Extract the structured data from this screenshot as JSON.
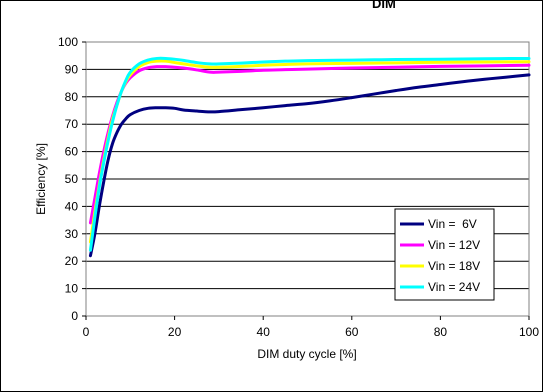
{
  "chart_data": {
    "type": "line",
    "title_fragment": "DIM",
    "xlabel": "DIM duty cycle [%]",
    "ylabel": "Efficiency [%]",
    "xlim": [
      0,
      100
    ],
    "ylim": [
      0,
      100
    ],
    "x_ticks": [
      0,
      20,
      40,
      60,
      80,
      100
    ],
    "y_ticks": [
      0,
      10,
      20,
      30,
      40,
      50,
      60,
      70,
      80,
      90,
      100
    ],
    "grid": "horizontal",
    "legend_position": "right",
    "series": [
      {
        "name": "Vin =  6V",
        "color": "#000080",
        "points": [
          [
            1,
            22
          ],
          [
            2,
            30
          ],
          [
            3,
            40
          ],
          [
            4,
            49
          ],
          [
            5,
            57
          ],
          [
            6,
            63
          ],
          [
            7,
            67
          ],
          [
            8,
            70
          ],
          [
            9,
            72
          ],
          [
            10,
            73.5
          ],
          [
            12,
            75
          ],
          [
            14,
            75.8
          ],
          [
            16,
            76
          ],
          [
            18,
            76
          ],
          [
            20,
            75.8
          ],
          [
            22,
            75.2
          ],
          [
            25,
            74.8
          ],
          [
            28,
            74.5
          ],
          [
            30,
            74.6
          ],
          [
            35,
            75.3
          ],
          [
            40,
            76
          ],
          [
            45,
            76.8
          ],
          [
            50,
            77.5
          ],
          [
            55,
            78.5
          ],
          [
            60,
            79.7
          ],
          [
            65,
            81
          ],
          [
            70,
            82.3
          ],
          [
            75,
            83.5
          ],
          [
            80,
            84.5
          ],
          [
            85,
            85.5
          ],
          [
            90,
            86.4
          ],
          [
            95,
            87.2
          ],
          [
            100,
            88
          ]
        ]
      },
      {
        "name": "Vin = 12V",
        "color": "#FF00FF",
        "points": [
          [
            1,
            34
          ],
          [
            2,
            43
          ],
          [
            3,
            52
          ],
          [
            4,
            60
          ],
          [
            5,
            67
          ],
          [
            6,
            73
          ],
          [
            7,
            78
          ],
          [
            8,
            82
          ],
          [
            9,
            85
          ],
          [
            10,
            87
          ],
          [
            12,
            89.5
          ],
          [
            14,
            90.6
          ],
          [
            16,
            91
          ],
          [
            18,
            91
          ],
          [
            20,
            90.8
          ],
          [
            22,
            90.5
          ],
          [
            25,
            89.8
          ],
          [
            28,
            89
          ],
          [
            30,
            89
          ],
          [
            35,
            89.3
          ],
          [
            40,
            89.7
          ],
          [
            45,
            89.9
          ],
          [
            50,
            90.1
          ],
          [
            60,
            90.5
          ],
          [
            70,
            90.8
          ],
          [
            80,
            91.1
          ],
          [
            90,
            91.3
          ],
          [
            100,
            91.5
          ]
        ]
      },
      {
        "name": "Vin = 18V",
        "color": "#FFFF00",
        "points": [
          [
            1,
            27
          ],
          [
            2,
            38
          ],
          [
            3,
            48
          ],
          [
            4,
            57
          ],
          [
            5,
            65
          ],
          [
            6,
            72
          ],
          [
            7,
            77
          ],
          [
            8,
            82
          ],
          [
            9,
            85.5
          ],
          [
            10,
            88
          ],
          [
            12,
            91
          ],
          [
            14,
            92.5
          ],
          [
            16,
            93
          ],
          [
            18,
            93
          ],
          [
            20,
            92.5
          ],
          [
            22,
            92
          ],
          [
            25,
            91.3
          ],
          [
            28,
            90.8
          ],
          [
            30,
            90.8
          ],
          [
            35,
            91.1
          ],
          [
            40,
            91.5
          ],
          [
            45,
            91.8
          ],
          [
            50,
            92
          ],
          [
            60,
            92.2
          ],
          [
            70,
            92.4
          ],
          [
            80,
            92.6
          ],
          [
            90,
            92.7
          ],
          [
            100,
            92.8
          ]
        ]
      },
      {
        "name": "Vin = 24V",
        "color": "#00FFFF",
        "points": [
          [
            1,
            24
          ],
          [
            2,
            36
          ],
          [
            3,
            47
          ],
          [
            4,
            56
          ],
          [
            5,
            64
          ],
          [
            6,
            71
          ],
          [
            7,
            77
          ],
          [
            8,
            82
          ],
          [
            9,
            86
          ],
          [
            10,
            89
          ],
          [
            12,
            92
          ],
          [
            14,
            93.4
          ],
          [
            16,
            94
          ],
          [
            18,
            94
          ],
          [
            20,
            93.7
          ],
          [
            22,
            93.3
          ],
          [
            25,
            92.5
          ],
          [
            28,
            92
          ],
          [
            30,
            92
          ],
          [
            35,
            92.3
          ],
          [
            40,
            92.7
          ],
          [
            45,
            93
          ],
          [
            50,
            93.2
          ],
          [
            60,
            93.4
          ],
          [
            70,
            93.6
          ],
          [
            80,
            93.7
          ],
          [
            90,
            93.9
          ],
          [
            100,
            94
          ]
        ]
      }
    ]
  }
}
